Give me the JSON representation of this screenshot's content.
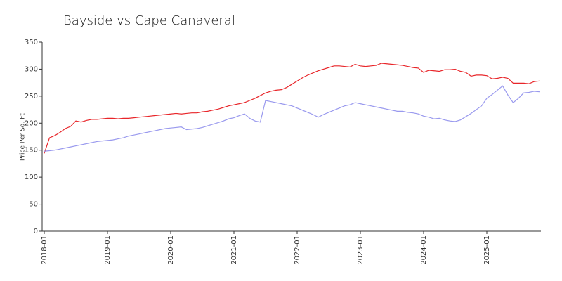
{
  "chart_data": {
    "type": "line",
    "title": "Bayside vs Cape Canaveral",
    "y_label": "Price Per Sq. Ft",
    "categories": [
      "2018-01",
      null,
      null,
      null,
      null,
      null,
      null,
      null,
      null,
      null,
      null,
      null,
      "2019-01",
      null,
      null,
      null,
      null,
      null,
      null,
      null,
      null,
      null,
      null,
      null,
      "2020-01",
      null,
      null,
      null,
      null,
      null,
      null,
      null,
      null,
      null,
      null,
      null,
      "2021-01",
      null,
      null,
      null,
      null,
      null,
      null,
      null,
      null,
      null,
      null,
      null,
      "2022-01",
      null,
      null,
      null,
      null,
      null,
      null,
      null,
      null,
      null,
      null,
      null,
      "2023-01",
      null,
      null,
      null,
      null,
      null,
      null,
      null,
      null,
      null,
      null,
      null,
      "2024-01",
      null,
      null,
      null,
      null,
      null,
      null,
      null,
      null,
      null,
      null,
      null,
      "2025-01",
      null,
      null,
      null,
      null,
      null,
      null,
      null,
      null,
      null,
      null
    ],
    "series": [
      {
        "color": "#e8262a",
        "values": [
          144,
          173,
          177,
          183,
          190,
          194,
          204,
          202,
          205,
          207,
          207,
          208,
          209,
          209,
          208,
          209,
          209,
          210,
          211,
          212,
          213,
          214,
          215,
          216,
          217,
          218,
          217,
          218,
          219,
          219,
          221,
          222,
          224,
          226,
          229,
          232,
          234,
          236,
          238,
          242,
          246,
          251,
          256,
          259,
          261,
          262,
          266,
          272,
          278,
          284,
          289,
          293,
          297,
          300,
          303,
          306,
          306,
          305,
          304,
          309,
          306,
          305,
          306,
          307,
          311,
          310,
          309,
          308,
          307,
          305,
          303,
          302,
          294,
          298,
          297,
          296,
          299,
          299,
          300,
          296,
          294,
          287,
          289,
          289,
          288,
          282,
          283,
          285,
          283,
          274,
          274,
          274,
          273,
          277,
          278
        ]
      },
      {
        "color": "#9999ee",
        "values": [
          148,
          149,
          150,
          152,
          154,
          156,
          158,
          160,
          162,
          164,
          166,
          167,
          168,
          169,
          171,
          173,
          176,
          178,
          180,
          182,
          184,
          186,
          188,
          190,
          191,
          192,
          193,
          188,
          189,
          190,
          192,
          195,
          198,
          201,
          204,
          208,
          210,
          214,
          217,
          209,
          204,
          202,
          242,
          240,
          238,
          236,
          234,
          232,
          228,
          224,
          220,
          216,
          211,
          216,
          220,
          224,
          228,
          232,
          234,
          238,
          236,
          234,
          232,
          230,
          228,
          226,
          224,
          222,
          222,
          220,
          219,
          217,
          213,
          211,
          208,
          209,
          206,
          204,
          203,
          206,
          212,
          218,
          225,
          232,
          246,
          253,
          261,
          269,
          252,
          238,
          246,
          256,
          257,
          259,
          258
        ]
      }
    ],
    "ylim": [
      0,
      350
    ],
    "yticks": [
      0,
      50,
      100,
      150,
      200,
      250,
      300,
      350
    ],
    "grid": false
  }
}
